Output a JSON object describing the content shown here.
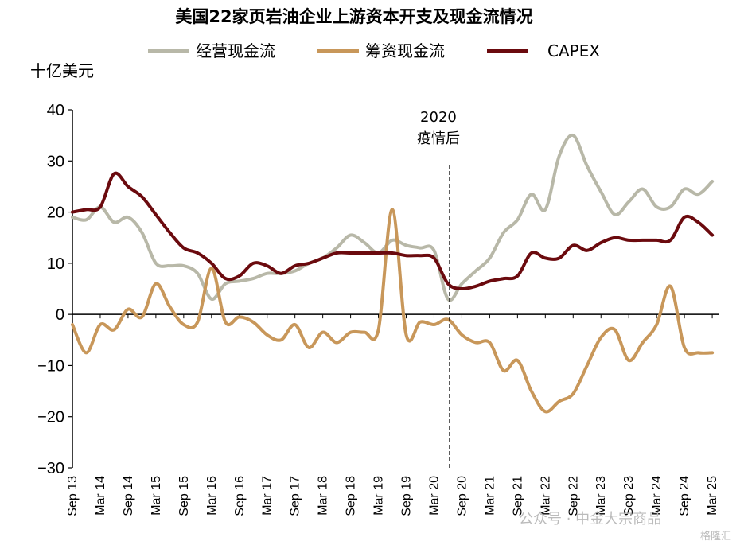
{
  "chart_data": {
    "type": "line",
    "title": "美国22家页岩油企业上游资本开支及现金流情况",
    "ylabel": "十亿美元",
    "xlabel": "",
    "ylim": [
      -30,
      40
    ],
    "yticks": [
      40,
      30,
      20,
      10,
      0,
      -10,
      -20,
      -30
    ],
    "grid": false,
    "legend_position": "top",
    "x_tick_labels": [
      "Sep 13",
      "Mar 14",
      "Sep 14",
      "Mar 15",
      "Sep 15",
      "Mar 16",
      "Sep 16",
      "Mar 17",
      "Sep 17",
      "Mar 18",
      "Sep 18",
      "Mar 19",
      "Sep 19",
      "Mar 20",
      "Sep 20",
      "Mar 21",
      "Sep 21",
      "Mar 22",
      "Sep 22",
      "Mar 23",
      "Sep 23",
      "Mar 24",
      "Sep 24",
      "Mar 25"
    ],
    "x": [
      "Sep 13",
      "Dec 13",
      "Mar 14",
      "Jun 14",
      "Sep 14",
      "Dec 14",
      "Mar 15",
      "Jun 15",
      "Sep 15",
      "Dec 15",
      "Mar 16",
      "Jun 16",
      "Sep 16",
      "Dec 16",
      "Mar 17",
      "Jun 17",
      "Sep 17",
      "Dec 17",
      "Mar 18",
      "Jun 18",
      "Sep 18",
      "Dec 18",
      "Mar 19",
      "Jun 19",
      "Sep 19",
      "Dec 19",
      "Mar 20",
      "Jun 20",
      "Sep 20",
      "Dec 20",
      "Mar 21",
      "Jun 21",
      "Sep 21",
      "Dec 21",
      "Mar 22",
      "Jun 22",
      "Sep 22",
      "Dec 22",
      "Mar 23",
      "Jun 23",
      "Sep 23",
      "Dec 23",
      "Mar 24",
      "Jun 24",
      "Sep 24",
      "Dec 24",
      "Mar 25"
    ],
    "series": [
      {
        "name": "经营现金流",
        "color": "#b8b8a8",
        "values": [
          19,
          18.5,
          21,
          18,
          19,
          16,
          10,
          9.5,
          9.5,
          8,
          3,
          6,
          6.5,
          7,
          8,
          8,
          8.5,
          10,
          11,
          13,
          15.5,
          14,
          12,
          14.5,
          13.5,
          13,
          12.5,
          3,
          6,
          8.5,
          11,
          16,
          18.5,
          23.5,
          20.5,
          31,
          35,
          29,
          24,
          19.5,
          22,
          24.5,
          21,
          21,
          24.5,
          23.5,
          26
        ]
      },
      {
        "name": "筹资现金流",
        "color": "#c8975a",
        "values": [
          -2,
          -7.5,
          -2,
          -3,
          1,
          -0.5,
          6,
          1.5,
          -2,
          -1.5,
          9,
          -1.5,
          -0.5,
          -1.5,
          -4,
          -5,
          -2,
          -6.5,
          -3.5,
          -5.5,
          -3.5,
          -3.5,
          -3,
          20.5,
          -4,
          -1.5,
          -2,
          -1,
          -4,
          -5.5,
          -5.5,
          -11,
          -9,
          -15,
          -19,
          -17,
          -15.5,
          -10,
          -4.5,
          -3,
          -9,
          -5.5,
          -2,
          5.5,
          -6.5,
          -7.5,
          -7.5
        ]
      },
      {
        "name": "CAPEX",
        "color": "#6b0a0e",
        "values": [
          20,
          20.5,
          21,
          27.5,
          25,
          23,
          19.5,
          16,
          13,
          12,
          10,
          7,
          7.5,
          10,
          9.5,
          8,
          9.5,
          10,
          11,
          12,
          12,
          12,
          12,
          12,
          11.5,
          11.5,
          11,
          6,
          5,
          5.5,
          6.5,
          7,
          7.5,
          12,
          11,
          11,
          13.5,
          12.5,
          14,
          15,
          14.5,
          14.5,
          14.5,
          14.5,
          19,
          18,
          15.5
        ]
      }
    ],
    "annotations": [
      {
        "text": "2020",
        "at": "Jun 20"
      },
      {
        "text": "疫情后",
        "at": "Jun 20"
      }
    ]
  },
  "watermark": {
    "text": "公众号 · 中金大宗商品",
    "sub": "格隆汇"
  }
}
